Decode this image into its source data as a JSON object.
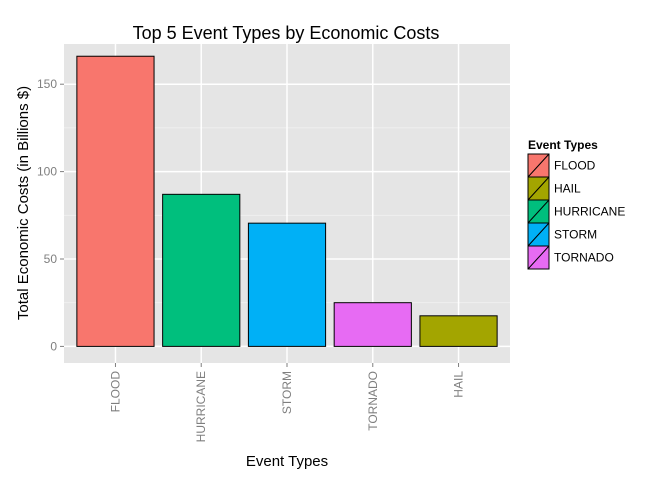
{
  "chart_data": {
    "type": "bar",
    "title": "Top 5 Event Types by Economic Costs",
    "xlabel": "Event Types",
    "ylabel": "Total Economic Costs (in Billions $)",
    "categories": [
      "FLOOD",
      "HURRICANE",
      "STORM",
      "TORNADO",
      "HAIL"
    ],
    "values": [
      166,
      87,
      70.5,
      25,
      17.5
    ],
    "ylim": [
      -9.5,
      173
    ],
    "yticks": [
      0,
      50,
      100,
      150
    ],
    "grid": true,
    "legend": {
      "title": "Event Types",
      "placement": "right",
      "items": [
        "FLOOD",
        "HAIL",
        "HURRICANE",
        "STORM",
        "TORNADO"
      ]
    },
    "colors": {
      "FLOOD": "#f8766d",
      "HAIL": "#a3a500",
      "HURRICANE": "#00bf7d",
      "STORM": "#00b0f6",
      "TORNADO": "#e76bf3",
      "panel_background": "#e5e5e5",
      "grid_major": "#ffffff",
      "grid_minor": "#f2f2f2"
    }
  }
}
